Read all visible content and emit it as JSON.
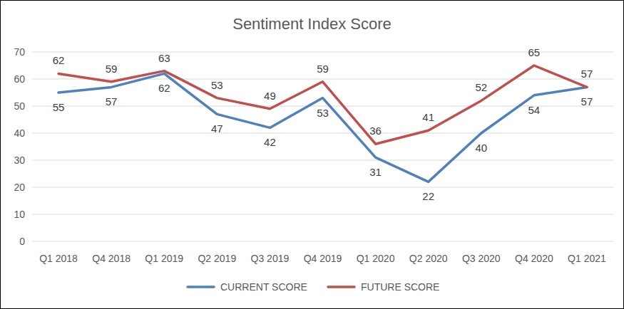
{
  "chart_data": {
    "type": "line",
    "title": "Sentiment Index Score",
    "categories": [
      "Q1 2018",
      "Q4 2018",
      "Q1 2019",
      "Q2 2019",
      "Q3 2019",
      "Q4 2019",
      "Q1 2020",
      "Q2 2020",
      "Q3 2020",
      "Q4 2020",
      "Q1 2021"
    ],
    "series": [
      {
        "name": "CURRENT SCORE",
        "color": "#4f81bd",
        "values": [
          55,
          57,
          62,
          47,
          42,
          53,
          31,
          22,
          40,
          54,
          57
        ]
      },
      {
        "name": "FUTURE SCORE",
        "color": "#c0504d",
        "values": [
          62,
          59,
          63,
          53,
          49,
          59,
          36,
          41,
          52,
          65,
          57
        ]
      }
    ],
    "ylim": [
      0,
      70
    ],
    "yticks": [
      0,
      10,
      20,
      30,
      40,
      50,
      60,
      70
    ],
    "grid": true,
    "legend": "bottom",
    "data_labels": true
  }
}
